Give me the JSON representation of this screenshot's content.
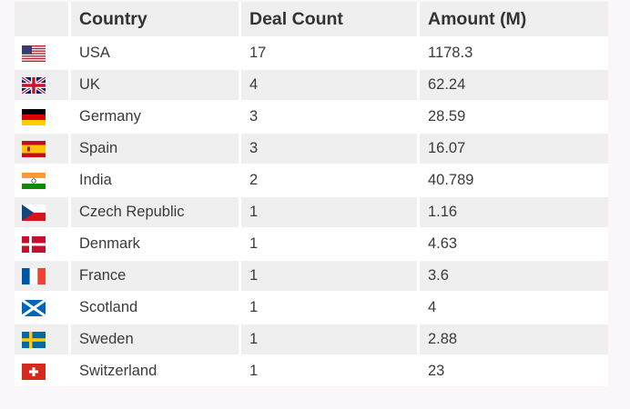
{
  "table": {
    "headers": {
      "country": "Country",
      "deal_count": "Deal Count",
      "amount": "Amount (M)"
    },
    "rows": [
      {
        "flag": "usa-flag-icon",
        "country": "USA",
        "deal_count": "17",
        "amount": "1178.3"
      },
      {
        "flag": "uk-flag-icon",
        "country": "UK",
        "deal_count": "4",
        "amount": "62.24"
      },
      {
        "flag": "germany-flag-icon",
        "country": "Germany",
        "deal_count": "3",
        "amount": "28.59"
      },
      {
        "flag": "spain-flag-icon",
        "country": "Spain",
        "deal_count": "3",
        "amount": "16.07"
      },
      {
        "flag": "india-flag-icon",
        "country": "India",
        "deal_count": "2",
        "amount": "40.789"
      },
      {
        "flag": "czech-republic-flag-icon",
        "country": "Czech Republic",
        "deal_count": "1",
        "amount": "1.16"
      },
      {
        "flag": "denmark-flag-icon",
        "country": "Denmark",
        "deal_count": "1",
        "amount": "4.63"
      },
      {
        "flag": "france-flag-icon",
        "country": "France",
        "deal_count": "1",
        "amount": "3.6"
      },
      {
        "flag": "scotland-flag-icon",
        "country": "Scotland",
        "deal_count": "1",
        "amount": "4"
      },
      {
        "flag": "sweden-flag-icon",
        "country": "Sweden",
        "deal_count": "1",
        "amount": "2.88"
      },
      {
        "flag": "switzerland-flag-icon",
        "country": "Switzerland",
        "deal_count": "1",
        "amount": "23"
      }
    ]
  }
}
